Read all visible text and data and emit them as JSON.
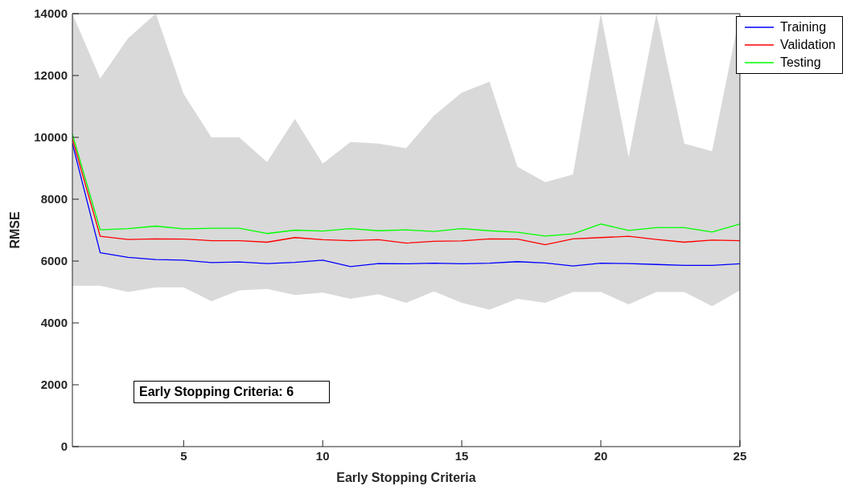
{
  "chart_data": {
    "type": "line",
    "xlabel": "Early Stopping Criteria",
    "ylabel": "RMSE",
    "x": [
      1,
      2,
      3,
      4,
      5,
      6,
      7,
      8,
      9,
      10,
      11,
      12,
      13,
      14,
      15,
      16,
      17,
      18,
      19,
      20,
      21,
      22,
      23,
      24,
      25
    ],
    "xlim": [
      1,
      25
    ],
    "xticks": [
      5,
      10,
      15,
      20,
      25
    ],
    "ylim": [
      0,
      14000
    ],
    "yticks": [
      0,
      2000,
      4000,
      6000,
      8000,
      10000,
      12000,
      14000
    ],
    "grid": false,
    "legend": "top right",
    "marker": "none",
    "line_style": "solid",
    "annotations": [
      "Early Stopping Criteria: 6"
    ],
    "series": [
      {
        "name": "Training",
        "color": "#0000ff",
        "values": [
          9800,
          6270,
          6120,
          6050,
          6030,
          5950,
          5970,
          5920,
          5960,
          6030,
          5820,
          5920,
          5910,
          5930,
          5910,
          5930,
          5980,
          5940,
          5840,
          5930,
          5920,
          5890,
          5860,
          5860,
          5910
        ]
      },
      {
        "name": "Validation",
        "color": "#ff0000",
        "values": [
          9950,
          6800,
          6700,
          6720,
          6710,
          6660,
          6660,
          6610,
          6760,
          6690,
          6660,
          6690,
          6580,
          6640,
          6650,
          6720,
          6710,
          6530,
          6720,
          6760,
          6800,
          6700,
          6610,
          6680,
          6660
        ],
        "lower": [
          5200,
          5200,
          5000,
          5150,
          5150,
          4700,
          5050,
          5100,
          4900,
          4980,
          4780,
          4930,
          4650,
          5020,
          4650,
          4430,
          4780,
          4650,
          5000,
          5000,
          4600,
          5000,
          5000,
          4540,
          5050
        ],
        "upper": [
          14000,
          11900,
          13200,
          14000,
          11400,
          10000,
          10000,
          9200,
          10600,
          9150,
          9850,
          9800,
          9650,
          10700,
          11450,
          11800,
          9050,
          8550,
          8800,
          14000,
          9350,
          14000,
          9800,
          9550,
          14000
        ]
      },
      {
        "name": "Testing",
        "color": "#00ff00",
        "values": [
          10100,
          7010,
          7050,
          7130,
          7040,
          7060,
          7060,
          6890,
          7000,
          6970,
          7050,
          6980,
          7010,
          6960,
          7050,
          6980,
          6930,
          6810,
          6880,
          7200,
          6990,
          7080,
          7080,
          6940,
          7200
        ]
      }
    ]
  }
}
